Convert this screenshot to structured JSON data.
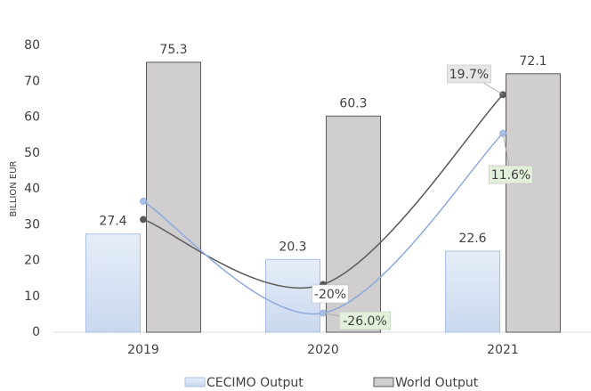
{
  "chart_data": {
    "type": "bar",
    "y_label": "BILLION EUR",
    "categories": [
      "2019",
      "2020",
      "2021"
    ],
    "ylim": [
      0,
      80
    ],
    "yticks": [
      0,
      10,
      20,
      30,
      40,
      50,
      60,
      70,
      80
    ],
    "y2lim": [
      -30,
      30
    ],
    "series": [
      {
        "name": "CECIMO Output",
        "color": "#d6e1f3",
        "values": [
          27.4,
          20.3,
          22.6
        ]
      },
      {
        "name": "World Output",
        "color": "#d0cece",
        "values": [
          75.3,
          60.3,
          72.1
        ]
      }
    ],
    "lines": [
      {
        "color": "#595959",
        "axis": "y2",
        "values": [
          -6.4,
          -20,
          19.7
        ],
        "value_labels": [
          null,
          "-20%",
          "19.7%"
        ]
      },
      {
        "color": "#8eaadb",
        "axis": "y2",
        "values": [
          -2.6,
          -26,
          11.6
        ],
        "value_labels": [
          null,
          "-26.0%",
          "11.6%"
        ]
      }
    ]
  }
}
